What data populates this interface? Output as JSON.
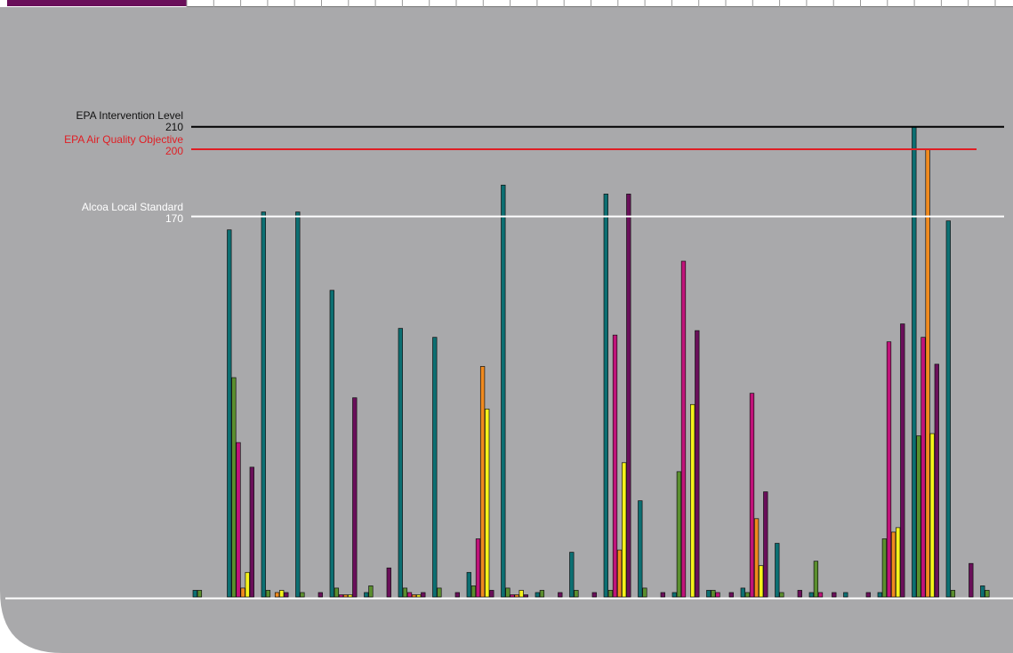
{
  "colors": {
    "background": "#a9a9ab",
    "teal": "#0c6f72",
    "green": "#5b8f2e",
    "magenta": "#c1137a",
    "orange": "#f08a1e",
    "yellow": "#f5f21a",
    "purple": "#6a0f5a",
    "intervention_line": "#000000",
    "objective_line": "#e01e24",
    "local_standard_line": "#ffffff",
    "header_accent": "#6a0f5a"
  },
  "chart_data": {
    "type": "bar",
    "title": "",
    "xlabel": "",
    "ylabel": "",
    "ylim": [
      0,
      240
    ],
    "grid": false,
    "reference_lines": [
      {
        "label": "EPA Intervention Level",
        "value": 210,
        "value_label": "210",
        "color": "#000000"
      },
      {
        "label": "EPA Air Quality Objective",
        "value": 200,
        "value_label": "200",
        "color": "#e01e24"
      },
      {
        "label": "Alcoa Local Standard",
        "value": 170,
        "value_label": "170",
        "color": "#ffffff"
      }
    ],
    "series_colors": [
      "teal",
      "green",
      "magenta",
      "orange",
      "yellow",
      "purple"
    ],
    "groups": [
      [
        3,
        3,
        0,
        0,
        0,
        0
      ],
      [
        164,
        98,
        69,
        4,
        11,
        58
      ],
      [
        172,
        3,
        0,
        2,
        3,
        2
      ],
      [
        172,
        2,
        0,
        0,
        0,
        2
      ],
      [
        137,
        4,
        1,
        1,
        1,
        89
      ],
      [
        2,
        5,
        0,
        0,
        0,
        13
      ],
      [
        120,
        4,
        2,
        1,
        1,
        2
      ],
      [
        116,
        4,
        0,
        0,
        0,
        2
      ],
      [
        11,
        5,
        26,
        103,
        84,
        3
      ],
      [
        184,
        4,
        1,
        1,
        3,
        1
      ],
      [
        2,
        3,
        0,
        0,
        0,
        2
      ],
      [
        20,
        3,
        0,
        0,
        0,
        2
      ],
      [
        180,
        3,
        117,
        21,
        60,
        180
      ],
      [
        43,
        4,
        0,
        0,
        0,
        2
      ],
      [
        2,
        56,
        150,
        0,
        86,
        119
      ],
      [
        3,
        3,
        2,
        0,
        0,
        2
      ],
      [
        4,
        2,
        91,
        35,
        14,
        47
      ],
      [
        24,
        2,
        0,
        0,
        0,
        3
      ],
      [
        2,
        16,
        2,
        0,
        0,
        2
      ],
      [
        2,
        0,
        0,
        0,
        0,
        2
      ],
      [
        2,
        26,
        114,
        29,
        31,
        122
      ],
      [
        210,
        72,
        116,
        200,
        73,
        104
      ],
      [
        168,
        3,
        0,
        0,
        0,
        15
      ],
      [
        5,
        3,
        0,
        0,
        0,
        0
      ]
    ],
    "notes": "Stacked/overlapping bars per monitoring period; values estimated from pixel heights relative to reference lines."
  }
}
